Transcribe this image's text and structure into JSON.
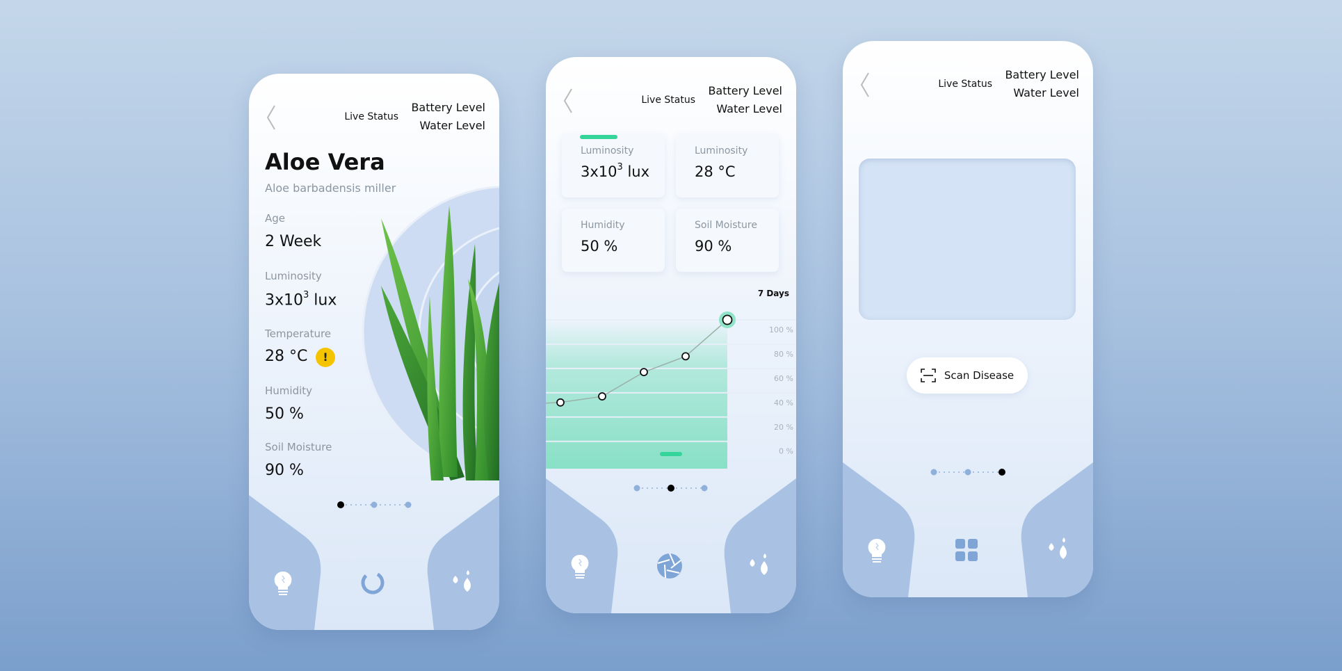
{
  "colors": {
    "accent_green": "#35d49a",
    "nav_blue": "#7fa5d6",
    "warning": "#f5c400"
  },
  "header": {
    "live_status": "Live Status",
    "battery_level": "Battery Level",
    "water_level": "Water Level"
  },
  "screen1": {
    "plant_name": "Aloe Vera",
    "scientific_name": "Aloe barbadensis miller",
    "stats": [
      {
        "label": "Age",
        "value": "2 Week"
      },
      {
        "label": "Luminosity",
        "value": "3x10",
        "sup": "3",
        "unit": " lux"
      },
      {
        "label": "Temperature",
        "value": "28 °C",
        "warning": "!"
      },
      {
        "label": "Humidity",
        "value": "50 %"
      },
      {
        "label": "Soil Moisture",
        "value": "90 %"
      }
    ],
    "active_page": 1,
    "nav_icons": [
      "bulb-icon",
      "loading-ring-icon",
      "water-drops-icon"
    ]
  },
  "screen2": {
    "cards": [
      {
        "label": "Luminosity",
        "value": "3x10",
        "sup": "3",
        "unit": " lux"
      },
      {
        "label": "Luminosity",
        "value": "28 °C"
      },
      {
        "label": "Humidity",
        "value": "50 %"
      },
      {
        "label": "Soil Moisture",
        "value": "90 %"
      }
    ],
    "range_label": "7 Days",
    "active_page": 2,
    "nav_icons": [
      "bulb-icon",
      "camera-shutter-icon",
      "water-drops-icon"
    ]
  },
  "screen3": {
    "scan_button": "Scan Disease",
    "active_page": 3,
    "nav_icons": [
      "bulb-icon",
      "grid-icon",
      "water-drops-icon"
    ]
  },
  "chart_data": {
    "type": "line",
    "y_ticks": [
      "100 %",
      "80 %",
      "60 %",
      "40 %",
      "20 %",
      "0 %"
    ],
    "ylim": [
      0,
      100
    ],
    "values": [
      32,
      37,
      57,
      70,
      100
    ],
    "highlight_last": true,
    "grid": true
  }
}
